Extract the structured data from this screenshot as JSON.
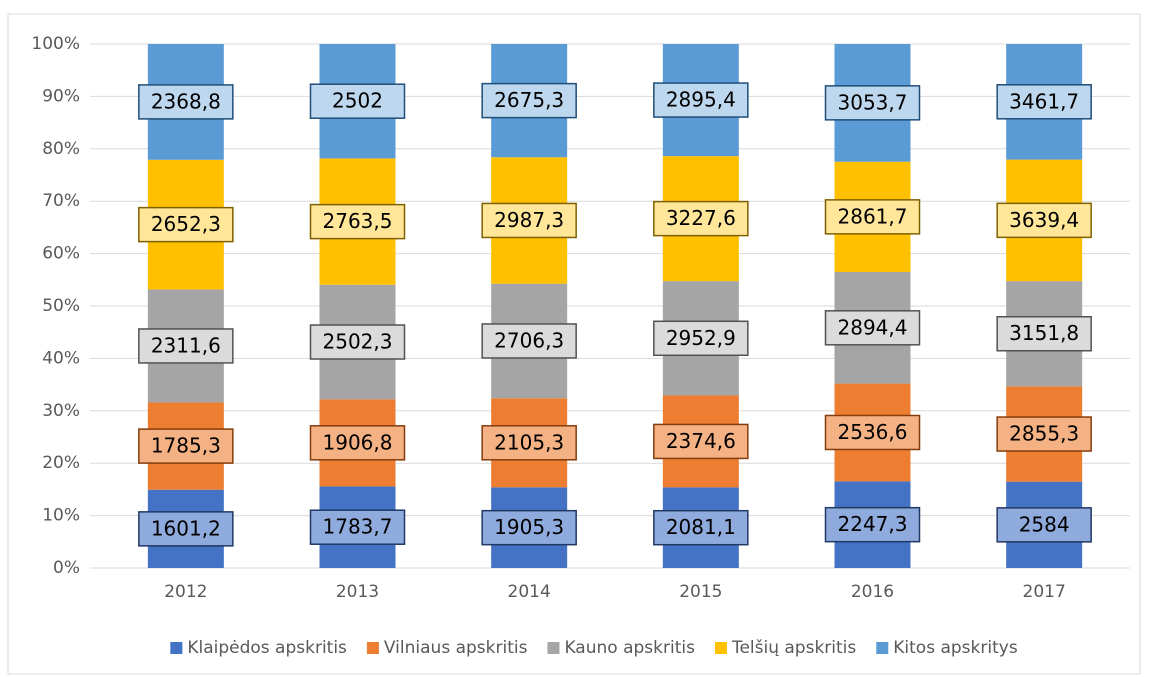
{
  "chart_data": {
    "type": "bar",
    "stacking": "percent",
    "categories": [
      "2012",
      "2013",
      "2014",
      "2015",
      "2016",
      "2017"
    ],
    "series": [
      {
        "name": "Klaipėdos apskritis",
        "color": "#4472c4",
        "label_fill": "#8faadc",
        "label_border": "#203864",
        "values": [
          1601.2,
          1783.7,
          1905.3,
          2081.1,
          2247.3,
          2584
        ],
        "value_labels": [
          "1601,2",
          "1783,7",
          "1905,3",
          "2081,1",
          "2247,3",
          "2584"
        ]
      },
      {
        "name": "Vilniaus apskritis",
        "color": "#ed7d31",
        "label_fill": "#f4b183",
        "label_border": "#843c0c",
        "values": [
          1785.3,
          1906.8,
          2105.3,
          2374.6,
          2536.6,
          2855.3
        ],
        "value_labels": [
          "1785,3",
          "1906,8",
          "2105,3",
          "2374,6",
          "2536,6",
          "2855,3"
        ]
      },
      {
        "name": "Kauno apskritis",
        "color": "#a5a5a5",
        "label_fill": "#dbdbdb",
        "label_border": "#525252",
        "values": [
          2311.6,
          2502.3,
          2706.3,
          2952.9,
          2894.4,
          3151.8
        ],
        "value_labels": [
          "2311,6",
          "2502,3",
          "2706,3",
          "2952,9",
          "2894,4",
          "3151,8"
        ]
      },
      {
        "name": "Telšių apskritis",
        "color": "#ffc000",
        "label_fill": "#ffe699",
        "label_border": "#7f6000",
        "values": [
          2652.3,
          2763.5,
          2987.3,
          3227.6,
          2861.7,
          3639.4
        ],
        "value_labels": [
          "2652,3",
          "2763,5",
          "2987,3",
          "3227,6",
          "2861,7",
          "3639,4"
        ]
      },
      {
        "name": "Kitos apskritys",
        "color": "#5b9bd5",
        "label_fill": "#bdd7ee",
        "label_border": "#1f4e79",
        "values": [
          2368.8,
          2502,
          2675.3,
          2895.4,
          3053.7,
          3461.7
        ],
        "value_labels": [
          "2368,8",
          "2502",
          "2675,3",
          "2895,4",
          "3053,7",
          "3461,7"
        ]
      }
    ],
    "ylim": [
      0,
      100
    ],
    "yticks": [
      {
        "value": 0,
        "label": "0%"
      },
      {
        "value": 10,
        "label": "10%"
      },
      {
        "value": 20,
        "label": "20%"
      },
      {
        "value": 30,
        "label": "30%"
      },
      {
        "value": 40,
        "label": "40%"
      },
      {
        "value": 50,
        "label": "50%"
      },
      {
        "value": 60,
        "label": "60%"
      },
      {
        "value": 70,
        "label": "70%"
      },
      {
        "value": 80,
        "label": "80%"
      },
      {
        "value": 90,
        "label": "90%"
      },
      {
        "value": 100,
        "label": "100%"
      }
    ],
    "grid": true,
    "legend": "bottom"
  }
}
